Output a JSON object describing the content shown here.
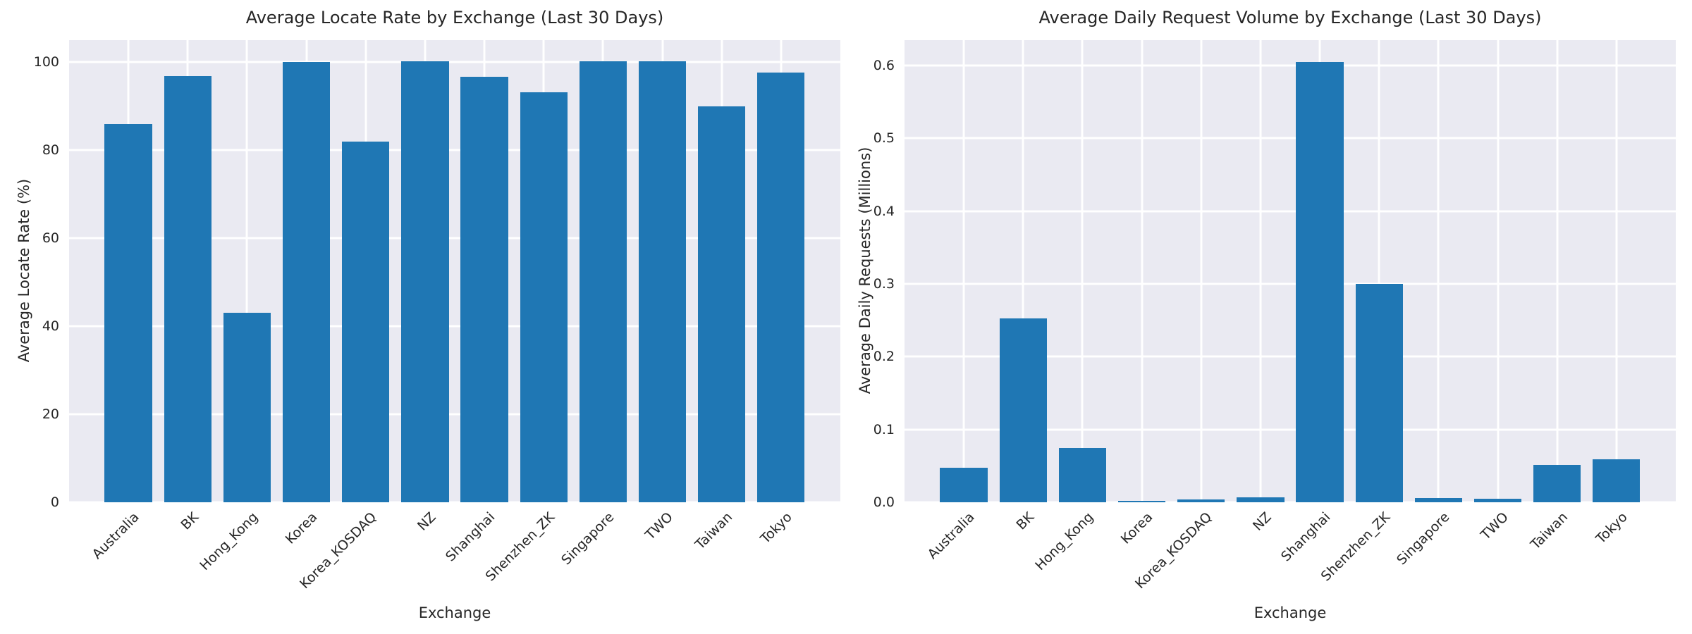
{
  "figure": {
    "background": "#ffffff"
  },
  "style": {
    "bar_color": "#1f77b4",
    "plot_background": "#eaeaf2",
    "grid_color": "#ffffff",
    "text_color": "#262626"
  },
  "chart_data": [
    {
      "type": "bar",
      "title": "Average Locate Rate by Exchange (Last 30 Days)",
      "xlabel": "Exchange",
      "ylabel": "Average Locate Rate (%)",
      "categories": [
        "Australia",
        "BK",
        "Hong_Kong",
        "Korea",
        "Korea_KOSDAQ",
        "NZ",
        "Shanghai",
        "Shenzhen_ZK",
        "Singapore",
        "TWO",
        "Taiwan",
        "Tokyo"
      ],
      "values": [
        86.0,
        96.9,
        43.0,
        100.0,
        81.9,
        100.2,
        96.6,
        93.2,
        100.2,
        100.2,
        90.0,
        97.7
      ],
      "ylim": [
        0,
        105
      ],
      "yticks": [
        0,
        20,
        40,
        60,
        80,
        100
      ],
      "ytick_labels": [
        "0",
        "20",
        "40",
        "60",
        "80",
        "100"
      ],
      "xlim": [
        -1,
        12
      ],
      "bar_width": 0.8,
      "x_tick_rotation": 45,
      "grid": true,
      "legend": false
    },
    {
      "type": "bar",
      "title": "Average Daily Request Volume by Exchange (Last 30 Days)",
      "xlabel": "Exchange",
      "ylabel": "Average Daily Requests (Millions)",
      "categories": [
        "Australia",
        "BK",
        "Hong_Kong",
        "Korea",
        "Korea_KOSDAQ",
        "NZ",
        "Shanghai",
        "Shenzhen_ZK",
        "Singapore",
        "TWO",
        "Taiwan",
        "Tokyo"
      ],
      "values": [
        0.047,
        0.253,
        0.075,
        0.002,
        0.004,
        0.007,
        0.605,
        0.3,
        0.006,
        0.005,
        0.051,
        0.059
      ],
      "ylim": [
        0,
        0.635
      ],
      "yticks": [
        0.0,
        0.1,
        0.2,
        0.3,
        0.4,
        0.5,
        0.6
      ],
      "ytick_labels": [
        "0.0",
        "0.1",
        "0.2",
        "0.3",
        "0.4",
        "0.5",
        "0.6"
      ],
      "xlim": [
        -1,
        12
      ],
      "bar_width": 0.8,
      "x_tick_rotation": 45,
      "grid": true,
      "legend": false
    }
  ]
}
